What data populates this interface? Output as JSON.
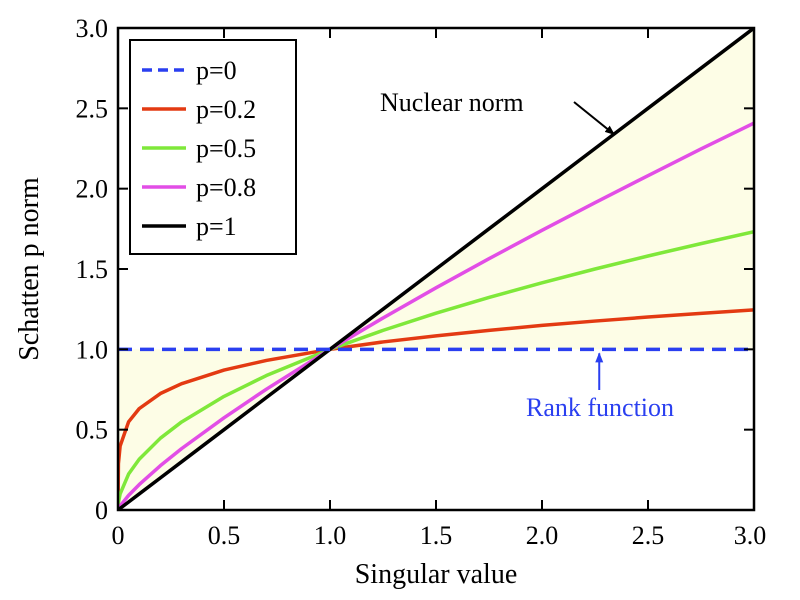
{
  "chart_data": {
    "type": "line",
    "xlabel": "Singular value",
    "ylabel": "Schatten p norm",
    "xlim": [
      0,
      3
    ],
    "ylim": [
      0,
      3
    ],
    "x_ticks": [
      "0",
      "0.5",
      "1.0",
      "1.5",
      "2.0",
      "2.5",
      "3.0"
    ],
    "x_tick_values": [
      0,
      0.5,
      1,
      1.5,
      2,
      2.5,
      3
    ],
    "y_ticks": [
      "0",
      "0.5",
      "1.0",
      "1.5",
      "2.0",
      "2.5",
      "3.0"
    ],
    "y_tick_values": [
      0,
      0.5,
      1,
      1.5,
      2,
      2.5,
      3
    ],
    "grid": false,
    "legend_position": "top-left",
    "fill_color": "#fdfde6",
    "x": [
      0,
      0.002,
      0.01,
      0.05,
      0.1,
      0.2,
      0.3,
      0.5,
      0.7,
      1.0,
      1.25,
      1.5,
      1.75,
      2.0,
      2.25,
      2.5,
      2.75,
      3.0
    ],
    "series": [
      {
        "name": "p=0",
        "color": "#2a3ff0",
        "dashed": true,
        "values": [
          1,
          1,
          1,
          1,
          1,
          1,
          1,
          1,
          1,
          1,
          1,
          1,
          1,
          1,
          1,
          1,
          1,
          1
        ]
      },
      {
        "name": "p=0.2",
        "color": "#e33a12",
        "dashed": false,
        "values": [
          0,
          0.288,
          0.398,
          0.549,
          0.631,
          0.725,
          0.786,
          0.871,
          0.931,
          1.0,
          1.046,
          1.084,
          1.118,
          1.149,
          1.176,
          1.201,
          1.224,
          1.246
        ]
      },
      {
        "name": "p=0.5",
        "color": "#7fe83a",
        "dashed": false,
        "values": [
          0,
          0.045,
          0.1,
          0.224,
          0.316,
          0.447,
          0.548,
          0.707,
          0.837,
          1.0,
          1.118,
          1.225,
          1.323,
          1.414,
          1.5,
          1.581,
          1.658,
          1.732
        ]
      },
      {
        "name": "p=0.8",
        "color": "#e24ee6",
        "dashed": false,
        "values": [
          0,
          0.007,
          0.025,
          0.091,
          0.158,
          0.276,
          0.382,
          0.574,
          0.752,
          1.0,
          1.195,
          1.383,
          1.564,
          1.741,
          1.913,
          2.081,
          2.247,
          2.408
        ]
      },
      {
        "name": "p=1",
        "color": "#000000",
        "dashed": false,
        "values": [
          0,
          0.002,
          0.01,
          0.05,
          0.1,
          0.2,
          0.3,
          0.5,
          0.7,
          1.0,
          1.25,
          1.5,
          1.75,
          2.0,
          2.25,
          2.5,
          2.75,
          3.0
        ]
      }
    ],
    "annotations": [
      {
        "text": "Nuclear norm",
        "color": "#000000",
        "points_to": [
          2.35,
          2.35
        ]
      },
      {
        "text": "Rank function",
        "color": "#2a3ff0",
        "points_to": [
          2.27,
          1.0
        ]
      }
    ]
  }
}
